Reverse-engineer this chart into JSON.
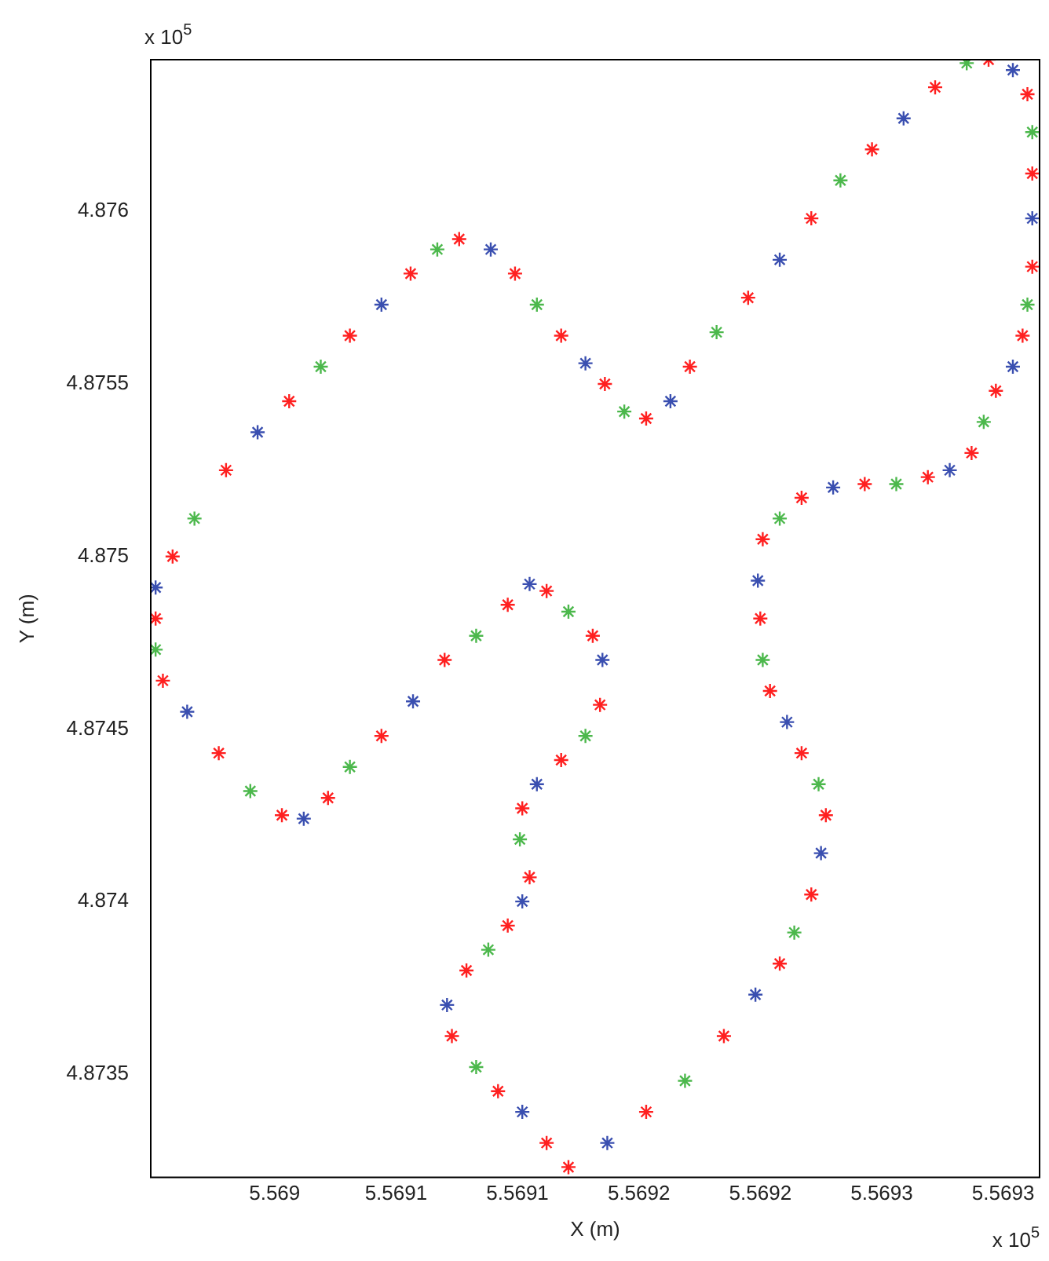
{
  "chart_data": {
    "type": "scatter",
    "xlabel": "X (m)",
    "ylabel": "Y (m)",
    "marker": "cross",
    "grid": false,
    "annotations": [
      "x 10$^{5}$",
      "x 10$^{5}$"
    ],
    "xlim": [
      5.568949,
      5.569315
    ],
    "ylim": [
      4.8732,
      4.87644
    ],
    "xticks": [
      {
        "value": 5.569,
        "label": "5.569"
      },
      {
        "value": 5.56905,
        "label": "5.5691"
      },
      {
        "value": 5.5691,
        "label": "5.5691"
      },
      {
        "value": 5.56915,
        "label": "5.5692"
      },
      {
        "value": 5.5692,
        "label": "5.5692"
      },
      {
        "value": 5.56925,
        "label": "5.5693"
      },
      {
        "value": 5.5693,
        "label": "5.5693"
      }
    ],
    "yticks": [
      {
        "value": 4.8735,
        "label": "4.8735"
      },
      {
        "value": 4.874,
        "label": "4.874"
      },
      {
        "value": 4.8745,
        "label": "4.8745"
      },
      {
        "value": 4.875,
        "label": "4.875"
      },
      {
        "value": 4.8755,
        "label": "4.8755"
      },
      {
        "value": 4.876,
        "label": "4.876"
      }
    ],
    "series": [
      {
        "color": "#ff2020",
        "x": [
          5.569121,
          5.569153,
          5.569185,
          5.569208,
          5.569221,
          5.569227,
          5.569217,
          5.569204,
          5.5692,
          5.569201,
          5.569217,
          5.569243,
          5.569269,
          5.569287,
          5.569297,
          5.569308,
          5.569312,
          5.569312,
          5.56931,
          5.569294,
          5.569272,
          5.569246,
          5.569221,
          5.569195,
          5.569171,
          5.569153,
          5.569136,
          5.569118,
          5.569099,
          5.569076,
          5.569056,
          5.569031,
          5.569006,
          5.56898,
          5.568958,
          5.568951,
          5.568954,
          5.568977,
          5.569003,
          5.569022,
          5.569044,
          5.56907,
          5.569096,
          5.569112,
          5.569131,
          5.569134,
          5.569118,
          5.569102,
          5.569105,
          5.569096,
          5.569079,
          5.569073,
          5.569092,
          5.569112
        ],
        "values": [
          4.87323,
          4.87339,
          4.87361,
          4.87382,
          4.87402,
          4.87425,
          4.87443,
          4.87461,
          4.87482,
          4.87505,
          4.87517,
          4.87521,
          4.87523,
          4.8753,
          4.87548,
          4.87564,
          4.87584,
          4.87611,
          4.87634,
          4.87644,
          4.87636,
          4.87618,
          4.87598,
          4.87575,
          4.87555,
          4.8754,
          4.8755,
          4.87564,
          4.87582,
          4.87592,
          4.87582,
          4.87564,
          4.87545,
          4.87525,
          4.875,
          4.87482,
          4.87464,
          4.87443,
          4.87425,
          4.8743,
          4.87448,
          4.8747,
          4.87486,
          4.8749,
          4.87477,
          4.87457,
          4.87441,
          4.87427,
          4.87407,
          4.87393,
          4.8738,
          4.87361,
          4.87345,
          4.8733
        ]
      },
      {
        "color": "#3a4fb0",
        "x": [
          5.569137,
          5.569198,
          5.569225,
          5.569211,
          5.569199,
          5.56923,
          5.569278,
          5.569304,
          5.569312,
          5.569304,
          5.569259,
          5.569208,
          5.569163,
          5.569128,
          5.569089,
          5.569044,
          5.568993,
          5.568951,
          5.568964,
          5.569012,
          5.569057,
          5.569105,
          5.569135,
          5.569108,
          5.569102,
          5.569071,
          5.569102
        ],
        "values": [
          4.8733,
          4.87373,
          4.87414,
          4.87452,
          4.87493,
          4.8752,
          4.87525,
          4.87555,
          4.87598,
          4.87641,
          4.87627,
          4.87586,
          4.87545,
          4.87556,
          4.87589,
          4.87573,
          4.87536,
          4.87491,
          4.87455,
          4.87424,
          4.87458,
          4.87492,
          4.8747,
          4.87434,
          4.874,
          4.8737,
          4.87339
        ]
      },
      {
        "color": "#4cb84c",
        "x": [
          5.569169,
          5.569214,
          5.569224,
          5.569201,
          5.569208,
          5.569256,
          5.569292,
          5.56931,
          5.569312,
          5.569285,
          5.569233,
          5.569182,
          5.569144,
          5.569108,
          5.569067,
          5.569019,
          5.568967,
          5.568951,
          5.56899,
          5.569031,
          5.569083,
          5.569121,
          5.569128,
          5.569101,
          5.569088,
          5.569083
        ],
        "values": [
          4.87348,
          4.87391,
          4.87434,
          4.8747,
          4.87511,
          4.87521,
          4.87539,
          4.87573,
          4.87623,
          4.87643,
          4.87609,
          4.87565,
          4.87542,
          4.87573,
          4.87589,
          4.87555,
          4.87511,
          4.87473,
          4.87432,
          4.87439,
          4.87477,
          4.87484,
          4.87448,
          4.87418,
          4.87386,
          4.87352
        ]
      }
    ]
  }
}
